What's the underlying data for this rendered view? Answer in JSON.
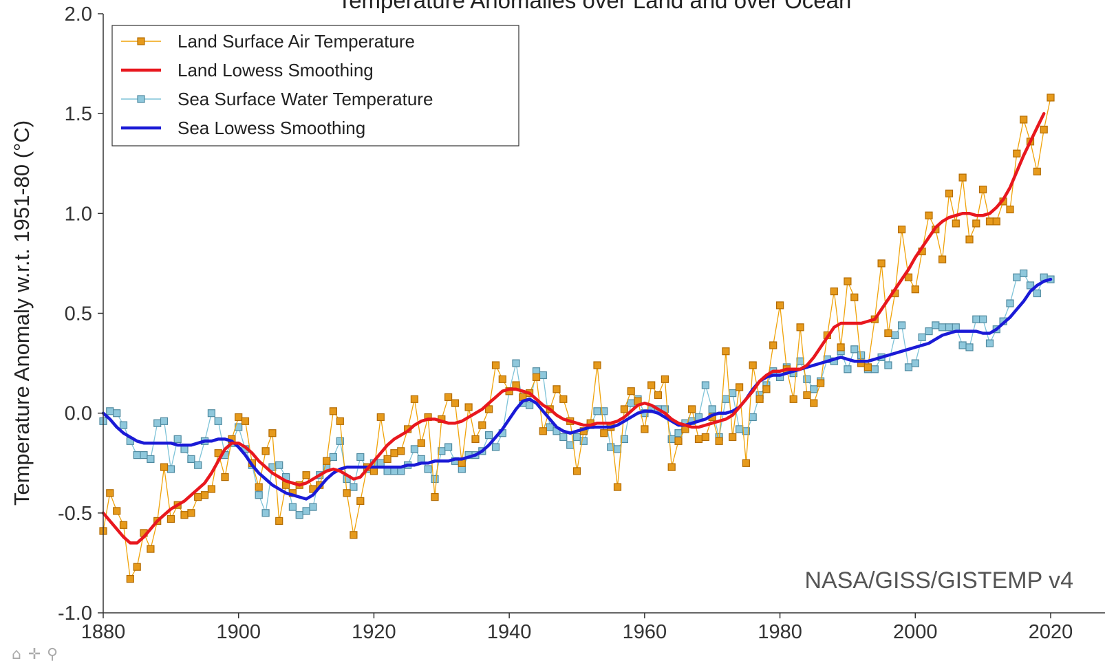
{
  "colors": {
    "land_raw": "#f0a30a",
    "land_raw_marker_fill": "#e69a1c",
    "land_raw_marker_stroke": "#b36b00",
    "land_smooth": "#e8171e",
    "sea_raw": "#7ec3d8",
    "sea_raw_marker_fill": "#8fc8dc",
    "sea_raw_marker_stroke": "#4f8aa0",
    "sea_smooth": "#1a1ad6"
  },
  "toolbar": {
    "home_icon": "⌂",
    "pan_icon": "✛",
    "zoom_icon": "⚲"
  },
  "chart_data": {
    "type": "line",
    "title": "Temperature Anomalies over Land and over Ocean",
    "xlabel": "",
    "ylabel": "Temperature Anomaly w.r.t. 1951-80 (°C)",
    "annotation": "NASA/GISS/GISTEMP v4",
    "xlim": [
      1880,
      2023
    ],
    "ylim": [
      -1.0,
      2.0
    ],
    "xticks": [
      1880,
      1900,
      1920,
      1940,
      1960,
      1980,
      2000,
      2020
    ],
    "yticks": [
      -1.0,
      -0.5,
      0.0,
      0.5,
      1.0,
      1.5,
      2.0
    ],
    "ytick_labels": [
      "-1.0",
      "-0.5",
      "0.0",
      "0.5",
      "1.0",
      "1.5",
      "2.0"
    ],
    "grid": false,
    "legend_position": "top-left",
    "x_start": 1880,
    "series": [
      {
        "name": "Land Surface Air Temperature",
        "style": "markers",
        "values": [
          -0.59,
          -0.4,
          -0.49,
          -0.56,
          -0.83,
          -0.77,
          -0.6,
          -0.68,
          -0.54,
          -0.27,
          -0.53,
          -0.46,
          -0.51,
          -0.5,
          -0.42,
          -0.41,
          -0.38,
          -0.2,
          -0.32,
          -0.13,
          -0.02,
          -0.04,
          -0.25,
          -0.37,
          -0.19,
          -0.1,
          -0.54,
          -0.36,
          -0.4,
          -0.36,
          -0.31,
          -0.38,
          -0.36,
          -0.24,
          0.01,
          -0.04,
          -0.4,
          -0.61,
          -0.44,
          -0.27,
          -0.29,
          -0.02,
          -0.23,
          -0.2,
          -0.19,
          -0.08,
          0.07,
          -0.15,
          -0.02,
          -0.42,
          -0.03,
          0.08,
          0.05,
          -0.25,
          0.03,
          -0.13,
          -0.06,
          0.02,
          0.24,
          0.17,
          0.11,
          0.14,
          0.08,
          0.1,
          0.18,
          -0.09,
          0.02,
          0.12,
          0.07,
          -0.04,
          -0.29,
          -0.09,
          -0.05,
          0.24,
          -0.1,
          -0.07,
          -0.37,
          0.02,
          0.11,
          0.06,
          -0.08,
          0.14,
          0.09,
          0.17,
          -0.27,
          -0.14,
          -0.08,
          0.02,
          -0.13,
          -0.12,
          -0.02,
          -0.14,
          0.31,
          -0.12,
          0.13,
          -0.25,
          0.24,
          0.07,
          0.12,
          0.34,
          0.54,
          0.22,
          0.07,
          0.43,
          0.09,
          0.05,
          0.15,
          0.39,
          0.61,
          0.33,
          0.66,
          0.58,
          0.25,
          0.23,
          0.47,
          0.75,
          0.4,
          0.6,
          0.92,
          0.68,
          0.62,
          0.81,
          0.99,
          0.92,
          0.77,
          1.1,
          0.95,
          1.18,
          0.87,
          0.95,
          1.12,
          0.96,
          0.96,
          1.06,
          1.02,
          1.3,
          1.47,
          1.36,
          1.21,
          1.42,
          1.58
        ]
      },
      {
        "name": "Land Lowess Smoothing",
        "style": "line",
        "values": [
          -0.5,
          -0.54,
          -0.58,
          -0.62,
          -0.65,
          -0.65,
          -0.62,
          -0.58,
          -0.54,
          -0.51,
          -0.48,
          -0.46,
          -0.44,
          -0.41,
          -0.38,
          -0.35,
          -0.3,
          -0.24,
          -0.18,
          -0.15,
          -0.15,
          -0.17,
          -0.2,
          -0.24,
          -0.27,
          -0.3,
          -0.32,
          -0.34,
          -0.35,
          -0.36,
          -0.35,
          -0.33,
          -0.31,
          -0.29,
          -0.28,
          -0.29,
          -0.31,
          -0.33,
          -0.32,
          -0.28,
          -0.24,
          -0.2,
          -0.16,
          -0.13,
          -0.11,
          -0.09,
          -0.06,
          -0.04,
          -0.03,
          -0.03,
          -0.04,
          -0.05,
          -0.05,
          -0.04,
          -0.02,
          0.0,
          0.02,
          0.05,
          0.08,
          0.11,
          0.12,
          0.12,
          0.11,
          0.1,
          0.07,
          0.04,
          0.02,
          -0.01,
          -0.03,
          -0.04,
          -0.05,
          -0.06,
          -0.06,
          -0.05,
          -0.05,
          -0.05,
          -0.04,
          -0.02,
          0.01,
          0.04,
          0.05,
          0.04,
          0.02,
          0.0,
          -0.03,
          -0.05,
          -0.06,
          -0.07,
          -0.07,
          -0.06,
          -0.05,
          -0.04,
          -0.03,
          -0.01,
          0.03,
          0.07,
          0.11,
          0.16,
          0.19,
          0.21,
          0.21,
          0.22,
          0.22,
          0.22,
          0.24,
          0.28,
          0.33,
          0.38,
          0.43,
          0.45,
          0.45,
          0.45,
          0.45,
          0.46,
          0.47,
          0.52,
          0.57,
          0.62,
          0.67,
          0.72,
          0.78,
          0.83,
          0.88,
          0.93,
          0.96,
          0.98,
          0.99,
          1.0,
          1.0,
          0.99,
          0.99,
          1.0,
          1.03,
          1.07,
          1.13,
          1.21,
          1.29,
          1.36,
          1.43,
          1.5
        ]
      },
      {
        "name": "Sea Surface Water Temperature",
        "style": "markers",
        "values": [
          -0.04,
          0.01,
          0.0,
          -0.06,
          -0.14,
          -0.21,
          -0.21,
          -0.23,
          -0.05,
          -0.04,
          -0.28,
          -0.13,
          -0.18,
          -0.23,
          -0.26,
          -0.14,
          0.0,
          -0.04,
          -0.21,
          -0.15,
          -0.07,
          -0.18,
          -0.26,
          -0.41,
          -0.5,
          -0.27,
          -0.26,
          -0.32,
          -0.47,
          -0.51,
          -0.49,
          -0.47,
          -0.31,
          -0.27,
          -0.22,
          -0.14,
          -0.33,
          -0.37,
          -0.22,
          -0.28,
          -0.25,
          -0.25,
          -0.29,
          -0.29,
          -0.29,
          -0.26,
          -0.18,
          -0.23,
          -0.28,
          -0.33,
          -0.19,
          -0.17,
          -0.24,
          -0.28,
          -0.21,
          -0.21,
          -0.19,
          -0.11,
          -0.17,
          -0.1,
          0.11,
          0.25,
          0.05,
          0.04,
          0.21,
          0.19,
          -0.07,
          -0.09,
          -0.12,
          -0.16,
          -0.12,
          -0.14,
          -0.06,
          0.01,
          0.01,
          -0.17,
          -0.18,
          -0.13,
          0.05,
          0.07,
          0.0,
          0.02,
          0.02,
          0.02,
          -0.13,
          -0.1,
          -0.05,
          -0.04,
          -0.02,
          0.14,
          0.02,
          -0.12,
          0.07,
          0.1,
          -0.08,
          -0.09,
          -0.02,
          0.09,
          0.14,
          0.21,
          0.18,
          0.23,
          0.2,
          0.26,
          0.17,
          0.12,
          0.16,
          0.27,
          0.26,
          0.31,
          0.22,
          0.32,
          0.29,
          0.22,
          0.22,
          0.28,
          0.24,
          0.39,
          0.44,
          0.23,
          0.25,
          0.38,
          0.41,
          0.44,
          0.43,
          0.43,
          0.43,
          0.34,
          0.33,
          0.47,
          0.47,
          0.35,
          0.42,
          0.46,
          0.55,
          0.68,
          0.7,
          0.64,
          0.6,
          0.68,
          0.67
        ]
      },
      {
        "name": "Sea Lowess Smoothing",
        "style": "line",
        "values": [
          0.0,
          -0.03,
          -0.07,
          -0.1,
          -0.12,
          -0.14,
          -0.15,
          -0.15,
          -0.15,
          -0.15,
          -0.15,
          -0.16,
          -0.16,
          -0.16,
          -0.15,
          -0.14,
          -0.14,
          -0.13,
          -0.13,
          -0.14,
          -0.17,
          -0.21,
          -0.26,
          -0.3,
          -0.33,
          -0.36,
          -0.38,
          -0.4,
          -0.41,
          -0.42,
          -0.43,
          -0.41,
          -0.37,
          -0.33,
          -0.3,
          -0.28,
          -0.27,
          -0.27,
          -0.27,
          -0.27,
          -0.27,
          -0.27,
          -0.27,
          -0.27,
          -0.27,
          -0.26,
          -0.26,
          -0.25,
          -0.25,
          -0.24,
          -0.24,
          -0.24,
          -0.23,
          -0.23,
          -0.22,
          -0.21,
          -0.19,
          -0.16,
          -0.12,
          -0.08,
          -0.03,
          0.02,
          0.06,
          0.07,
          0.05,
          0.01,
          -0.03,
          -0.07,
          -0.09,
          -0.1,
          -0.09,
          -0.08,
          -0.07,
          -0.07,
          -0.07,
          -0.07,
          -0.06,
          -0.04,
          -0.02,
          0.0,
          0.01,
          0.01,
          0.0,
          -0.02,
          -0.04,
          -0.06,
          -0.06,
          -0.05,
          -0.04,
          -0.03,
          -0.01,
          0.0,
          0.0,
          0.01,
          0.03,
          0.07,
          0.12,
          0.16,
          0.18,
          0.19,
          0.19,
          0.2,
          0.21,
          0.22,
          0.23,
          0.24,
          0.25,
          0.26,
          0.27,
          0.28,
          0.27,
          0.26,
          0.26,
          0.26,
          0.27,
          0.28,
          0.29,
          0.3,
          0.31,
          0.32,
          0.33,
          0.34,
          0.35,
          0.37,
          0.39,
          0.4,
          0.41,
          0.41,
          0.41,
          0.41,
          0.4,
          0.4,
          0.42,
          0.45,
          0.48,
          0.52,
          0.56,
          0.61,
          0.64,
          0.66,
          0.67
        ]
      }
    ]
  }
}
